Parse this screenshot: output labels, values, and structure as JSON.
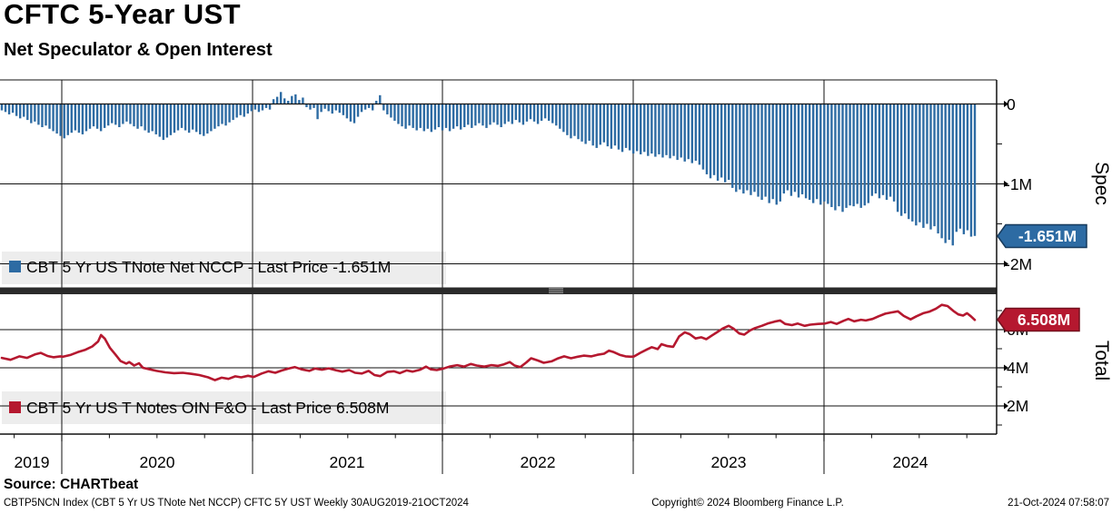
{
  "header": {
    "title": "CFTC 5-Year UST",
    "subtitle": "Net Speculator & Open Interest"
  },
  "spec_panel": {
    "axis_title": "Spec",
    "legend": "CBT 5 Yr US TNote Net NCCP - Last Price -1.651M",
    "last_badge": "-1.651M",
    "tick_labels": [
      "0",
      "-1M",
      "-2M"
    ]
  },
  "total_panel": {
    "axis_title": "Total",
    "legend": "CBT 5 Yr US T Notes OIN F&O - Last Price 6.508M",
    "last_badge": "6.508M",
    "tick_labels": [
      "6M",
      "4M",
      "2M"
    ]
  },
  "x_axis": {
    "year_labels": [
      "2019",
      "2020",
      "2021",
      "2022",
      "2023",
      "2024"
    ]
  },
  "footer": {
    "source": "Source: CHARTbeat",
    "ticker_line": "CBTP5NCN Index (CBT 5 Yr US TNote Net NCCP) CFTC 5Y UST  Weekly 30AUG2019-21OCT2024",
    "copyright": "Copyright© 2024 Bloomberg Finance L.P.",
    "datetime": "21-Oct-2024 07:58:07"
  },
  "colors": {
    "bar_blue": "#2d6ba3",
    "line_red": "#b5182f",
    "badge_blue_border": "#173a5c",
    "badge_red_border": "#72101e",
    "legend_bg": "#ededed",
    "separator": "#2b2b2b",
    "grip": "#9c9c9c",
    "grid": "#111111"
  },
  "chart_data": [
    {
      "type": "bar",
      "name": "CBT 5 Yr US TNote Net NCCP",
      "panel": "Spec",
      "frequency": "Weekly",
      "period": "30AUG2019-21OCT2024",
      "last_value": -1.651,
      "last_price_label": "-1.651M",
      "unit": "millions of contracts",
      "ylim": [
        -2.3,
        0.3
      ],
      "yticks": [
        0,
        -1,
        -2
      ],
      "legend_position": "inside-left-bottom",
      "grid": true,
      "values": [
        -0.08,
        -0.1,
        -0.13,
        -0.11,
        -0.15,
        -0.18,
        -0.16,
        -0.2,
        -0.24,
        -0.22,
        -0.26,
        -0.29,
        -0.27,
        -0.31,
        -0.34,
        -0.37,
        -0.4,
        -0.43,
        -0.39,
        -0.36,
        -0.33,
        -0.36,
        -0.38,
        -0.34,
        -0.31,
        -0.28,
        -0.31,
        -0.34,
        -0.3,
        -0.27,
        -0.24,
        -0.26,
        -0.29,
        -0.25,
        -0.22,
        -0.25,
        -0.28,
        -0.31,
        -0.28,
        -0.33,
        -0.36,
        -0.34,
        -0.38,
        -0.41,
        -0.45,
        -0.42,
        -0.39,
        -0.36,
        -0.33,
        -0.3,
        -0.33,
        -0.36,
        -0.32,
        -0.35,
        -0.38,
        -0.4,
        -0.37,
        -0.34,
        -0.31,
        -0.28,
        -0.25,
        -0.27,
        -0.23,
        -0.2,
        -0.17,
        -0.14,
        -0.16,
        -0.12,
        -0.09,
        -0.07,
        -0.1,
        -0.08,
        -0.05,
        -0.07,
        0.06,
        0.09,
        0.15,
        0.07,
        0.04,
        0.1,
        0.12,
        0.05,
        0.08,
        -0.04,
        -0.07,
        -0.05,
        -0.19,
        -0.1,
        -0.06,
        -0.09,
        -0.12,
        -0.08,
        -0.11,
        -0.14,
        -0.18,
        -0.22,
        -0.24,
        -0.16,
        -0.1,
        -0.07,
        -0.05,
        -0.08,
        0.04,
        0.11,
        -0.08,
        -0.13,
        -0.17,
        -0.21,
        -0.25,
        -0.28,
        -0.31,
        -0.27,
        -0.3,
        -0.33,
        -0.3,
        -0.34,
        -0.31,
        -0.35,
        -0.32,
        -0.29,
        -0.33,
        -0.3,
        -0.34,
        -0.31,
        -0.28,
        -0.32,
        -0.29,
        -0.26,
        -0.3,
        -0.27,
        -0.24,
        -0.27,
        -0.3,
        -0.26,
        -0.23,
        -0.26,
        -0.29,
        -0.25,
        -0.22,
        -0.25,
        -0.2,
        -0.23,
        -0.26,
        -0.22,
        -0.19,
        -0.22,
        -0.25,
        -0.21,
        -0.18,
        -0.21,
        -0.24,
        -0.27,
        -0.31,
        -0.35,
        -0.39,
        -0.43,
        -0.4,
        -0.44,
        -0.47,
        -0.5,
        -0.46,
        -0.52,
        -0.55,
        -0.51,
        -0.48,
        -0.53,
        -0.56,
        -0.52,
        -0.57,
        -0.6,
        -0.55,
        -0.58,
        -0.62,
        -0.59,
        -0.63,
        -0.6,
        -0.65,
        -0.62,
        -0.66,
        -0.63,
        -0.67,
        -0.64,
        -0.68,
        -0.65,
        -0.7,
        -0.67,
        -0.72,
        -0.69,
        -0.74,
        -0.71,
        -0.76,
        -0.82,
        -0.88,
        -0.93,
        -0.89,
        -0.96,
        -0.92,
        -0.98,
        -0.95,
        -1.05,
        -1.1,
        -1.07,
        -1.12,
        -1.08,
        -1.14,
        -1.1,
        -1.16,
        -1.2,
        -1.16,
        -1.24,
        -1.19,
        -1.26,
        -1.22,
        -1.12,
        -1.08,
        -1.15,
        -1.1,
        -1.17,
        -1.13,
        -1.18,
        -1.2,
        -1.24,
        -1.19,
        -1.26,
        -1.22,
        -1.25,
        -1.29,
        -1.33,
        -1.28,
        -1.35,
        -1.3,
        -1.27,
        -1.28,
        -1.25,
        -1.3,
        -1.27,
        -1.24,
        -1.15,
        -1.12,
        -1.18,
        -1.14,
        -1.2,
        -1.16,
        -1.22,
        -1.35,
        -1.4,
        -1.37,
        -1.44,
        -1.47,
        -1.52,
        -1.48,
        -1.55,
        -1.5,
        -1.57,
        -1.53,
        -1.62,
        -1.68,
        -1.74,
        -1.7,
        -1.77,
        -1.6,
        -1.56,
        -1.63,
        -1.58,
        -1.66,
        -1.651
      ]
    },
    {
      "type": "line",
      "name": "CBT 5 Yr US T Notes OIN F&O",
      "panel": "Total",
      "frequency": "Weekly",
      "period": "30AUG2019-21OCT2024",
      "last_value": 6.508,
      "last_price_label": "6.508M",
      "unit": "millions of contracts",
      "ylim": [
        0.5,
        7.9
      ],
      "yticks": [
        6,
        4,
        2
      ],
      "legend_position": "inside-left-bottom",
      "grid": true,
      "points": [
        [
          0.0,
          4.52
        ],
        [
          0.009,
          4.42
        ],
        [
          0.018,
          4.6
        ],
        [
          0.026,
          4.52
        ],
        [
          0.034,
          4.7
        ],
        [
          0.04,
          4.78
        ],
        [
          0.047,
          4.62
        ],
        [
          0.053,
          4.55
        ],
        [
          0.06,
          4.6
        ],
        [
          0.063,
          4.58
        ],
        [
          0.071,
          4.68
        ],
        [
          0.078,
          4.82
        ],
        [
          0.086,
          4.95
        ],
        [
          0.093,
          5.12
        ],
        [
          0.099,
          5.38
        ],
        [
          0.102,
          5.72
        ],
        [
          0.106,
          5.52
        ],
        [
          0.111,
          5.05
        ],
        [
          0.117,
          4.68
        ],
        [
          0.122,
          4.35
        ],
        [
          0.128,
          4.22
        ],
        [
          0.131,
          4.3
        ],
        [
          0.136,
          4.12
        ],
        [
          0.141,
          4.24
        ],
        [
          0.145,
          4.0
        ],
        [
          0.152,
          3.92
        ],
        [
          0.159,
          3.84
        ],
        [
          0.168,
          3.76
        ],
        [
          0.177,
          3.72
        ],
        [
          0.186,
          3.74
        ],
        [
          0.195,
          3.68
        ],
        [
          0.203,
          3.62
        ],
        [
          0.212,
          3.5
        ],
        [
          0.219,
          3.35
        ],
        [
          0.226,
          3.48
        ],
        [
          0.233,
          3.42
        ],
        [
          0.24,
          3.55
        ],
        [
          0.246,
          3.5
        ],
        [
          0.253,
          3.58
        ],
        [
          0.259,
          3.52
        ],
        [
          0.267,
          3.7
        ],
        [
          0.274,
          3.82
        ],
        [
          0.281,
          3.74
        ],
        [
          0.288,
          3.86
        ],
        [
          0.295,
          3.96
        ],
        [
          0.301,
          4.04
        ],
        [
          0.308,
          3.92
        ],
        [
          0.316,
          3.84
        ],
        [
          0.322,
          3.96
        ],
        [
          0.329,
          3.9
        ],
        [
          0.336,
          3.97
        ],
        [
          0.344,
          3.86
        ],
        [
          0.35,
          3.8
        ],
        [
          0.357,
          3.88
        ],
        [
          0.363,
          3.74
        ],
        [
          0.37,
          3.7
        ],
        [
          0.377,
          3.84
        ],
        [
          0.383,
          3.62
        ],
        [
          0.389,
          3.56
        ],
        [
          0.396,
          3.78
        ],
        [
          0.403,
          3.82
        ],
        [
          0.409,
          3.72
        ],
        [
          0.416,
          3.86
        ],
        [
          0.422,
          3.8
        ],
        [
          0.43,
          3.9
        ],
        [
          0.436,
          4.06
        ],
        [
          0.441,
          3.92
        ],
        [
          0.447,
          3.88
        ],
        [
          0.454,
          3.96
        ],
        [
          0.46,
          4.06
        ],
        [
          0.468,
          4.14
        ],
        [
          0.475,
          4.06
        ],
        [
          0.482,
          4.2
        ],
        [
          0.488,
          4.12
        ],
        [
          0.496,
          4.06
        ],
        [
          0.503,
          4.14
        ],
        [
          0.51,
          4.1
        ],
        [
          0.516,
          4.18
        ],
        [
          0.522,
          4.3
        ],
        [
          0.527,
          4.12
        ],
        [
          0.533,
          4.04
        ],
        [
          0.539,
          4.28
        ],
        [
          0.544,
          4.5
        ],
        [
          0.551,
          4.38
        ],
        [
          0.557,
          4.26
        ],
        [
          0.565,
          4.34
        ],
        [
          0.571,
          4.48
        ],
        [
          0.578,
          4.6
        ],
        [
          0.585,
          4.5
        ],
        [
          0.592,
          4.58
        ],
        [
          0.598,
          4.64
        ],
        [
          0.606,
          4.6
        ],
        [
          0.612,
          4.68
        ],
        [
          0.619,
          4.74
        ],
        [
          0.624,
          4.9
        ],
        [
          0.629,
          4.82
        ],
        [
          0.635,
          4.68
        ],
        [
          0.641,
          4.6
        ],
        [
          0.647,
          4.58
        ],
        [
          0.65,
          4.6
        ],
        [
          0.656,
          4.78
        ],
        [
          0.663,
          4.96
        ],
        [
          0.668,
          5.08
        ],
        [
          0.674,
          4.98
        ],
        [
          0.678,
          5.24
        ],
        [
          0.684,
          5.14
        ],
        [
          0.69,
          5.1
        ],
        [
          0.696,
          5.64
        ],
        [
          0.702,
          5.86
        ],
        [
          0.707,
          5.76
        ],
        [
          0.713,
          5.54
        ],
        [
          0.719,
          5.6
        ],
        [
          0.724,
          5.5
        ],
        [
          0.73,
          5.7
        ],
        [
          0.735,
          5.86
        ],
        [
          0.741,
          6.06
        ],
        [
          0.747,
          6.2
        ],
        [
          0.752,
          6.05
        ],
        [
          0.758,
          5.8
        ],
        [
          0.763,
          5.74
        ],
        [
          0.769,
          5.96
        ],
        [
          0.774,
          6.08
        ],
        [
          0.781,
          6.2
        ],
        [
          0.787,
          6.32
        ],
        [
          0.794,
          6.42
        ],
        [
          0.8,
          6.48
        ],
        [
          0.805,
          6.3
        ],
        [
          0.812,
          6.24
        ],
        [
          0.818,
          6.32
        ],
        [
          0.825,
          6.2
        ],
        [
          0.831,
          6.26
        ],
        [
          0.839,
          6.3
        ],
        [
          0.846,
          6.32
        ],
        [
          0.852,
          6.4
        ],
        [
          0.858,
          6.3
        ],
        [
          0.865,
          6.46
        ],
        [
          0.87,
          6.56
        ],
        [
          0.876,
          6.44
        ],
        [
          0.883,
          6.52
        ],
        [
          0.888,
          6.48
        ],
        [
          0.895,
          6.56
        ],
        [
          0.901,
          6.7
        ],
        [
          0.908,
          6.84
        ],
        [
          0.914,
          6.9
        ],
        [
          0.921,
          6.96
        ],
        [
          0.927,
          6.72
        ],
        [
          0.934,
          6.54
        ],
        [
          0.94,
          6.7
        ],
        [
          0.947,
          6.86
        ],
        [
          0.953,
          6.94
        ],
        [
          0.96,
          7.1
        ],
        [
          0.966,
          7.3
        ],
        [
          0.972,
          7.24
        ],
        [
          0.978,
          6.98
        ],
        [
          0.983,
          6.8
        ],
        [
          0.988,
          6.74
        ],
        [
          0.992,
          6.86
        ],
        [
          0.996,
          6.7
        ],
        [
          1.0,
          6.51
        ]
      ]
    }
  ]
}
